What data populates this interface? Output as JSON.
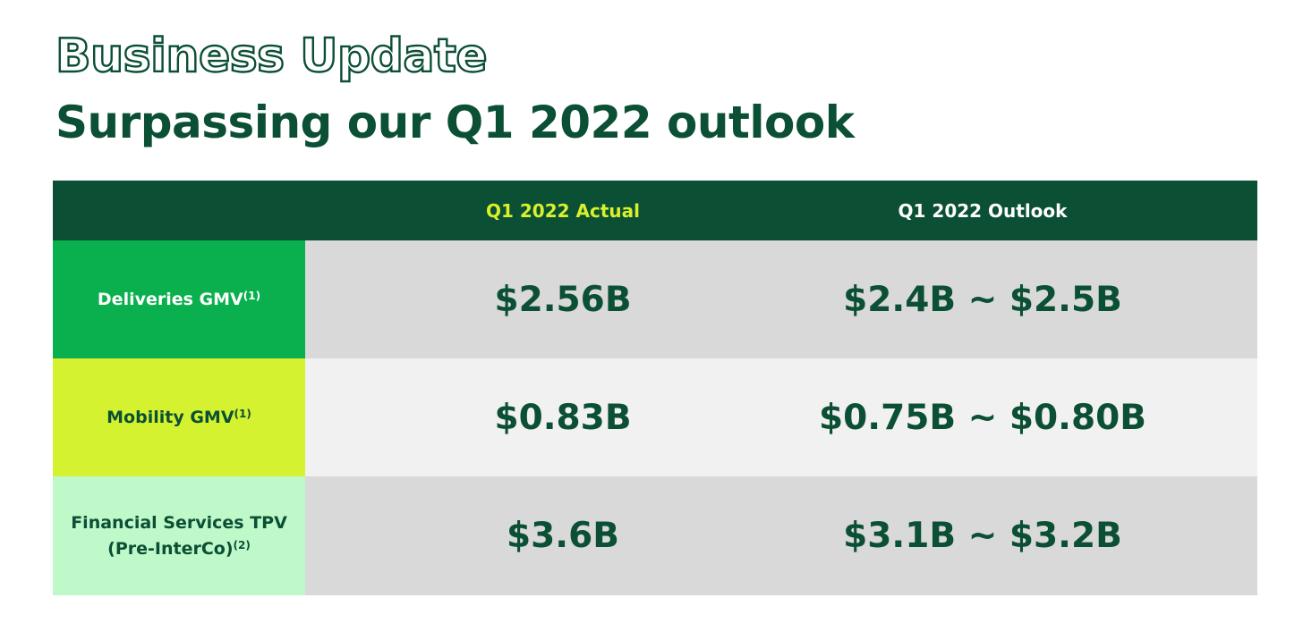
{
  "title": "Business Update",
  "subtitle": "Surpassing our Q1 2022 outlook",
  "table": {
    "headers": {
      "label": "",
      "actual": "Q1 2022 Actual",
      "outlook": "Q1 2022 Outlook"
    },
    "rows": [
      {
        "label": "Deliveries GMV",
        "label_line2": "",
        "footnote": "(1)",
        "actual": "$2.56B",
        "outlook": "$2.4B ~ $2.5B",
        "label_bg": "#09b04d",
        "label_color": "#ffffff",
        "value_bg": "#d9d9d9"
      },
      {
        "label": "Mobility GMV",
        "label_line2": "",
        "footnote": "(1)",
        "actual": "$0.83B",
        "outlook": "$0.75B ~ $0.80B",
        "label_bg": "#d4f22f",
        "label_color": "#0b4f34",
        "value_bg": "#f1f1f1"
      },
      {
        "label": "Financial Services TPV",
        "label_line2": "(Pre-InterCo)",
        "footnote": "(2)",
        "actual": "$3.6B",
        "outlook": "$3.1B ~ $3.2B",
        "label_bg": "#bff8c9",
        "label_color": "#0b4f34",
        "value_bg": "#d9d9d9"
      }
    ]
  },
  "colors": {
    "brand_dark_green": "#0b5034",
    "header_highlight": "#d9f02c",
    "text_dark_green": "#0b4f34"
  }
}
